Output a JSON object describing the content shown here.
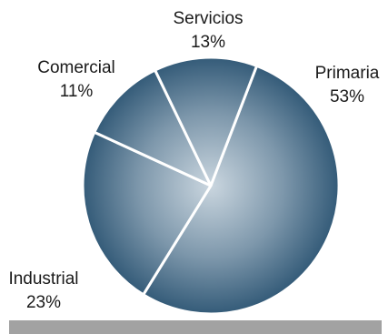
{
  "chart_data": {
    "type": "pie",
    "title": "",
    "categories": [
      "Primaria",
      "Industrial",
      "Comercial",
      "Servicios"
    ],
    "values": [
      53,
      23,
      11,
      13
    ],
    "value_labels": [
      "53%",
      "23%",
      "11%",
      "13%"
    ],
    "start_angle_deg": 21,
    "direction": "clockwise",
    "fill_colors": {
      "edge": "#2f5775",
      "center": "#cad6df"
    },
    "legend": "none"
  }
}
